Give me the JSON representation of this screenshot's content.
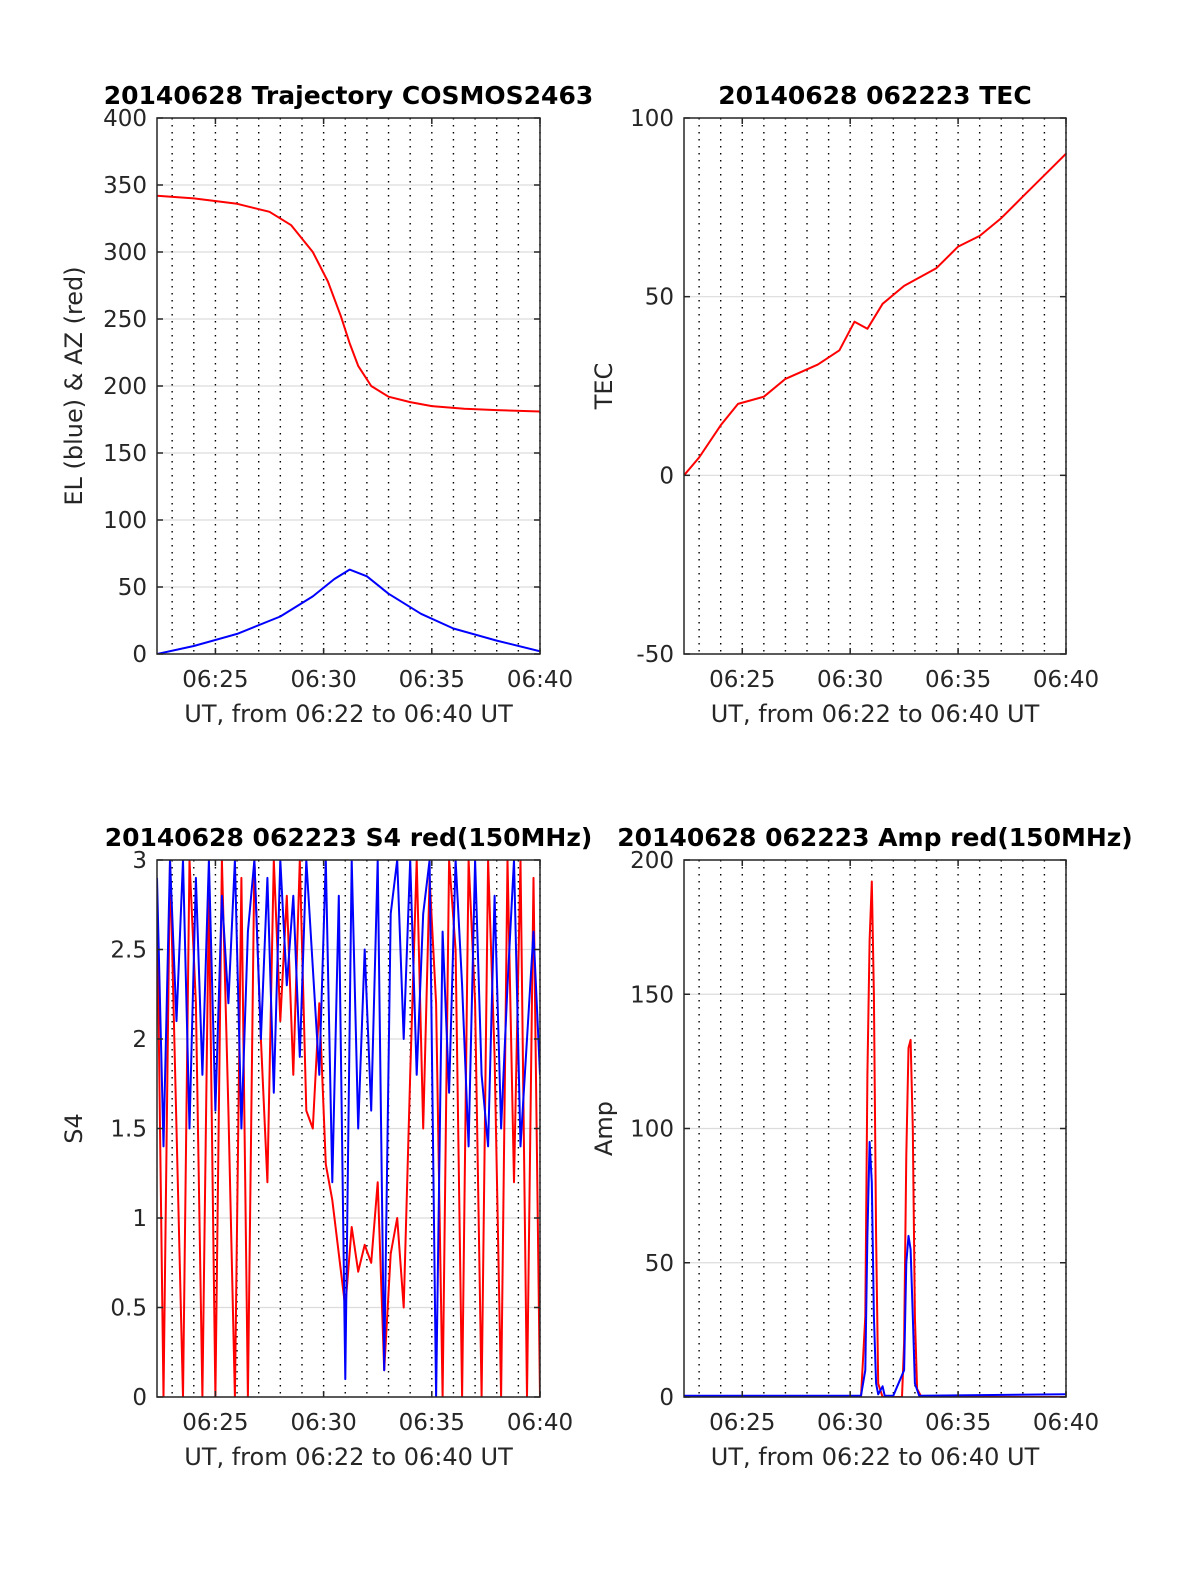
{
  "colors": {
    "red": "#ff0000",
    "blue": "#0000ff",
    "hgrid": "#dcdcdc",
    "vgrid": "#000000",
    "axis": "#262626"
  },
  "chart_data": [
    {
      "type": "line",
      "title": "20140628 Trajectory COSMOS2463",
      "xlabel": "UT, from 06:22 to 06:40 UT",
      "ylabel": "EL (blue) & AZ (red)",
      "x_range_minutes": [
        22.3,
        40
      ],
      "x_ticks": [
        "06:25",
        "06:30",
        "06:35",
        "06:40"
      ],
      "ylim": [
        0,
        400
      ],
      "y_ticks": [
        "0",
        "50",
        "100",
        "150",
        "200",
        "250",
        "300",
        "350",
        "400"
      ],
      "grid": "horizontal solid light-gray, vertical dotted black every minute",
      "series": [
        {
          "color": "red",
          "x": [
            22.3,
            24,
            26,
            27.5,
            28.5,
            29.5,
            30.2,
            30.8,
            31.2,
            31.6,
            32.2,
            33,
            34,
            35,
            36.5,
            38,
            40
          ],
          "y": [
            342,
            340,
            336,
            330,
            320,
            300,
            278,
            252,
            232,
            215,
            200,
            192,
            188,
            185,
            183,
            182,
            181
          ]
        },
        {
          "color": "blue",
          "x": [
            22.3,
            24,
            26,
            28,
            29.5,
            30.5,
            31.2,
            32,
            33,
            34.5,
            36,
            38,
            40
          ],
          "y": [
            0,
            6,
            15,
            28,
            43,
            56,
            63,
            58,
            45,
            30,
            19,
            10,
            2
          ]
        }
      ]
    },
    {
      "type": "line",
      "title": "20140628 062223 TEC",
      "xlabel": "UT, from 06:22 to 06:40 UT",
      "ylabel": "TEC",
      "x_range_minutes": [
        22.3,
        40
      ],
      "x_ticks": [
        "06:25",
        "06:30",
        "06:35",
        "06:40"
      ],
      "ylim": [
        -50,
        100
      ],
      "y_ticks": [
        "-50",
        "0",
        "50",
        "100"
      ],
      "series": [
        {
          "color": "red",
          "x": [
            22.3,
            23,
            24,
            24.8,
            26,
            27,
            28.5,
            29.5,
            30.2,
            30.8,
            31.5,
            32.5,
            34,
            35,
            36,
            37,
            38,
            39,
            40
          ],
          "y": [
            0,
            5,
            14,
            20,
            22,
            27,
            31,
            35,
            43,
            41,
            48,
            53,
            58,
            64,
            67,
            72,
            78,
            84,
            90
          ]
        }
      ]
    },
    {
      "type": "line",
      "title": "20140628 062223 S4 red(150MHz)",
      "xlabel": "UT, from 06:22 to 06:40 UT",
      "ylabel": "S4",
      "x_range_minutes": [
        22.3,
        40
      ],
      "x_ticks": [
        "06:25",
        "06:30",
        "06:35",
        "06:40"
      ],
      "ylim": [
        0,
        3
      ],
      "y_ticks": [
        "0",
        "0.5",
        "1",
        "1.5",
        "2",
        "2.5",
        "3"
      ],
      "series": [
        {
          "color": "red",
          "x": [
            22.3,
            22.6,
            22.9,
            23.2,
            23.5,
            23.8,
            24.1,
            24.4,
            24.7,
            25.0,
            25.3,
            25.6,
            25.9,
            26.2,
            26.5,
            26.8,
            27.1,
            27.4,
            27.7,
            28.0,
            28.3,
            28.6,
            28.9,
            29.2,
            29.5,
            29.8,
            30.1,
            30.4,
            30.7,
            31.0,
            31.3,
            31.6,
            31.9,
            32.2,
            32.5,
            32.8,
            33.1,
            33.4,
            33.7,
            34.0,
            34.3,
            34.6,
            34.9,
            35.2,
            35.5,
            35.8,
            36.1,
            36.4,
            36.7,
            37.0,
            37.3,
            37.6,
            37.9,
            38.2,
            38.5,
            38.8,
            39.1,
            39.4,
            39.7,
            40.0
          ],
          "y": [
            2.8,
            0,
            3,
            1.5,
            0,
            3,
            2.2,
            0,
            2.8,
            0,
            3,
            1.6,
            0,
            2.9,
            0,
            3,
            2.0,
            1.2,
            3,
            2.1,
            2.8,
            1.8,
            3,
            1.6,
            1.5,
            2.2,
            1.3,
            1.1,
            0.8,
            0.5,
            0.95,
            0.7,
            0.85,
            0.75,
            1.2,
            0.15,
            0.8,
            1.0,
            0.5,
            1.8,
            3,
            1.5,
            2.9,
            2.2,
            0,
            3,
            2.5,
            0,
            3,
            2.2,
            0,
            3,
            1.9,
            0,
            3,
            1.2,
            3,
            0,
            2.9,
            0
          ]
        },
        {
          "color": "blue",
          "x": [
            22.3,
            22.6,
            22.9,
            23.2,
            23.5,
            23.8,
            24.1,
            24.4,
            24.7,
            25.0,
            25.3,
            25.6,
            25.9,
            26.2,
            26.5,
            26.8,
            27.1,
            27.4,
            27.7,
            28.0,
            28.3,
            28.6,
            28.9,
            29.2,
            29.5,
            29.8,
            30.1,
            30.4,
            30.7,
            31.0,
            31.3,
            31.6,
            31.9,
            32.2,
            32.5,
            32.8,
            33.1,
            33.4,
            33.7,
            34.0,
            34.3,
            34.6,
            34.9,
            35.2,
            35.5,
            35.8,
            36.1,
            36.4,
            36.7,
            37.0,
            37.3,
            37.6,
            37.9,
            38.2,
            38.5,
            38.8,
            39.1,
            39.4,
            39.7,
            40.0
          ],
          "y": [
            2.9,
            1.4,
            3,
            2.1,
            3,
            1.5,
            2.9,
            1.8,
            3,
            1.6,
            2.8,
            2.2,
            3,
            1.5,
            2.6,
            3,
            2.0,
            2.9,
            1.7,
            3,
            2.3,
            2.8,
            1.9,
            3,
            2.4,
            1.8,
            3,
            1.2,
            2.8,
            0.1,
            3,
            1.5,
            2.5,
            1.6,
            3,
            0.15,
            2.7,
            3,
            2.0,
            3,
            1.8,
            2.7,
            3,
            0,
            2.6,
            1.7,
            3,
            2.3,
            1.4,
            3,
            1.8,
            1.4,
            2.8,
            1.5,
            2.3,
            3,
            1.4,
            2.0,
            2.6,
            1.8
          ]
        }
      ]
    },
    {
      "type": "line",
      "title": "20140628 062223 Amp red(150MHz)",
      "xlabel": "UT, from 06:22 to 06:40 UT",
      "ylabel": "Amp",
      "x_range_minutes": [
        22.3,
        40
      ],
      "x_ticks": [
        "06:25",
        "06:30",
        "06:35",
        "06:40"
      ],
      "ylim": [
        0,
        200
      ],
      "y_ticks": [
        "0",
        "50",
        "100",
        "150",
        "200"
      ],
      "series": [
        {
          "color": "red",
          "x": [
            22.3,
            30.2,
            30.5,
            30.7,
            30.8,
            30.9,
            31.0,
            31.1,
            31.2,
            31.3,
            31.5,
            32.0,
            32.4,
            32.5,
            32.6,
            32.7,
            32.8,
            32.9,
            33.0,
            33.1,
            33.3,
            40.0
          ],
          "y": [
            0,
            0,
            0,
            30,
            120,
            170,
            192,
            150,
            60,
            5,
            0,
            0,
            0,
            20,
            90,
            130,
            133,
            100,
            30,
            3,
            0,
            0
          ]
        },
        {
          "color": "blue",
          "x": [
            22.3,
            30.5,
            30.7,
            30.8,
            30.9,
            31.0,
            31.1,
            31.2,
            31.3,
            31.5,
            31.6,
            32.0,
            32.5,
            32.6,
            32.7,
            32.8,
            32.9,
            33.0,
            33.2,
            40.0
          ],
          "y": [
            0.5,
            0.5,
            10,
            60,
            95,
            80,
            30,
            5,
            1,
            4,
            0.5,
            0.5,
            10,
            50,
            60,
            55,
            30,
            5,
            0.5,
            1
          ]
        }
      ]
    }
  ]
}
